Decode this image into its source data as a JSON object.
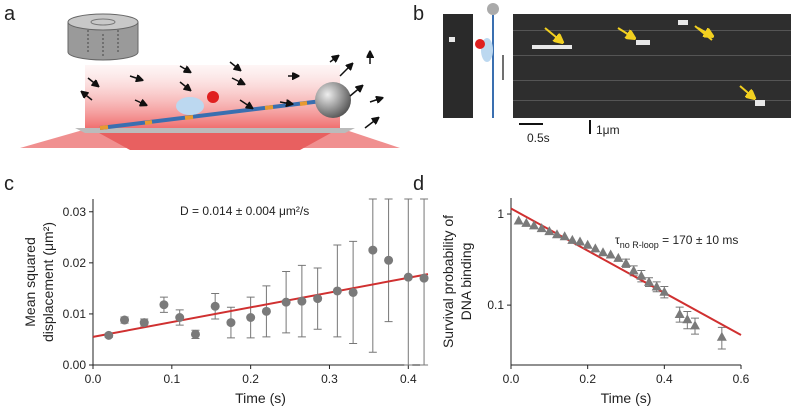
{
  "panel_labels": [
    "a",
    "b",
    "c",
    "d"
  ],
  "scale_bars": [
    "0.5s",
    "1μm"
  ],
  "chart_data": [
    {
      "type": "scatter",
      "xlabel": "Time (s)",
      "ylabel": [
        "Mean squared",
        "displacement (μm²)"
      ],
      "annotation": "D = 0.014 ± 0.004 μm²/s",
      "xlim": [
        0,
        0.425
      ],
      "ylim": [
        0,
        0.0325
      ],
      "xticks": [
        {
          "value": 0,
          "label": "0.0"
        },
        0.1,
        0.2,
        0.3,
        0.4
      ],
      "yticks": [
        {
          "value": 0,
          "label": "0.00"
        },
        0.01,
        0.02,
        0.03
      ],
      "log_y": false,
      "marker": "circle",
      "color": "#7a7a7a",
      "x": [
        0.02,
        0.04,
        0.065,
        0.09,
        0.11,
        0.13,
        0.155,
        0.175,
        0.2,
        0.22,
        0.245,
        0.265,
        0.285,
        0.31,
        0.33,
        0.355,
        0.375,
        0.4,
        0.42
      ],
      "values": [
        0.0058,
        0.0088,
        0.0083,
        0.0118,
        0.0093,
        0.006,
        0.0115,
        0.0083,
        0.0093,
        0.0105,
        0.0123,
        0.0125,
        0.013,
        0.0145,
        0.0142,
        0.0225,
        0.0205,
        0.0172,
        0.017
      ],
      "errors": [
        0.0004,
        0.0006,
        0.0007,
        0.0015,
        0.0015,
        0.0008,
        0.0025,
        0.003,
        0.004,
        0.005,
        0.006,
        0.007,
        0.006,
        0.009,
        0.01,
        0.02,
        0.012,
        0.022,
        0.02
      ],
      "fit": {
        "x": [
          0,
          0.425
        ],
        "values": [
          0.0055,
          0.0178
        ],
        "color": "#d03030"
      }
    },
    {
      "type": "scatter",
      "xlabel": "Time (s)",
      "ylabel": [
        "Survival probability of",
        "DNA binding"
      ],
      "annotation": [
        "τ",
        "no R-loop",
        " = 170 ± 10 ms"
      ],
      "xlim": [
        0,
        0.6
      ],
      "ylim": [
        0.022,
        1.5
      ],
      "xticks": [
        {
          "value": 0,
          "label": "0.0"
        },
        0.2,
        0.4,
        0.6
      ],
      "yticks": [
        1,
        0.1
      ],
      "log_y": true,
      "marker": "triangle",
      "color": "#7a7a7a",
      "x": [
        0.02,
        0.04,
        0.06,
        0.08,
        0.1,
        0.12,
        0.14,
        0.16,
        0.18,
        0.2,
        0.22,
        0.24,
        0.26,
        0.28,
        0.3,
        0.32,
        0.34,
        0.36,
        0.38,
        0.4,
        0.44,
        0.46,
        0.48,
        0.55
      ],
      "values": [
        0.85,
        0.8,
        0.75,
        0.7,
        0.65,
        0.6,
        0.57,
        0.52,
        0.5,
        0.46,
        0.42,
        0.38,
        0.36,
        0.33,
        0.29,
        0.24,
        0.21,
        0.18,
        0.16,
        0.14,
        0.08,
        0.07,
        0.06,
        0.045
      ],
      "errors": [
        null,
        null,
        null,
        null,
        null,
        null,
        null,
        null,
        null,
        null,
        null,
        null,
        null,
        null,
        0.03,
        0.03,
        0.03,
        0.02,
        0.02,
        0.02,
        0.015,
        0.015,
        0.012,
        0.012
      ],
      "fit": {
        "x": [
          0,
          0.6
        ],
        "values": [
          1.15,
          0.047
        ],
        "color": "#d03030"
      }
    }
  ]
}
